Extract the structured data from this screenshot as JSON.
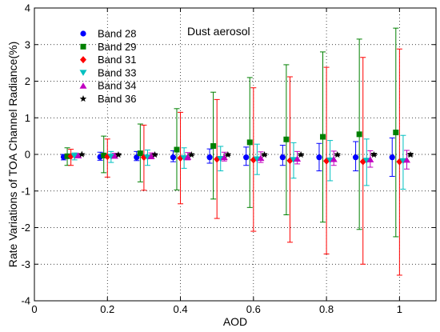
{
  "chart_data": {
    "type": "scatter",
    "xlabel": "AOD",
    "ylabel": "Rate Variations of TOA Channel Radiance(%)",
    "annotation": "Dust aerosol",
    "xlim": [
      0,
      1.1
    ],
    "ylim": [
      -4,
      4
    ],
    "xticks": [
      0,
      0.2,
      0.4,
      0.6,
      0.8,
      1
    ],
    "xtick_labels": [
      "0",
      "0.2",
      "0.4",
      "0.6",
      "0.8",
      "1"
    ],
    "yticks": [
      -4,
      -3,
      -2,
      -1,
      0,
      1,
      2,
      3,
      4
    ],
    "ytick_labels": [
      "-4",
      "-3",
      "-2",
      "-1",
      "0",
      "1",
      "2",
      "3",
      "4"
    ],
    "grid": "dotted",
    "legend_position": "top-left",
    "aod": [
      0.1,
      0.2,
      0.3,
      0.4,
      0.5,
      0.6,
      0.7,
      0.8,
      0.9,
      1.0
    ],
    "series": [
      {
        "name": "Band 28",
        "color": "#0000ff",
        "marker": "circle",
        "x_offset": -0.02,
        "values": [
          -0.07,
          -0.07,
          -0.08,
          -0.08,
          -0.08,
          -0.08,
          -0.08,
          -0.08,
          -0.08,
          -0.08
        ],
        "err_low": [
          -0.15,
          -0.16,
          -0.17,
          -0.2,
          -0.24,
          -0.3,
          -0.3,
          -0.45,
          -0.45,
          -0.6
        ],
        "err_high": [
          0.0,
          0.06,
          0.08,
          0.1,
          0.15,
          0.2,
          0.25,
          0.3,
          0.35,
          0.45
        ]
      },
      {
        "name": "Band 29",
        "color": "#008000",
        "marker": "square",
        "x_offset": -0.01,
        "values": [
          -0.05,
          -0.03,
          0.03,
          0.13,
          0.23,
          0.33,
          0.41,
          0.48,
          0.55,
          0.6
        ],
        "err_low": [
          -0.3,
          -0.5,
          -0.75,
          -0.97,
          -1.22,
          -1.45,
          -1.65,
          -1.85,
          -2.05,
          -2.25
        ],
        "err_high": [
          0.18,
          0.5,
          0.83,
          1.25,
          1.7,
          2.1,
          2.45,
          2.8,
          3.15,
          3.45
        ]
      },
      {
        "name": "Band 31",
        "color": "#ff0000",
        "marker": "diamond",
        "x_offset": 0.0,
        "values": [
          -0.05,
          -0.06,
          -0.08,
          -0.1,
          -0.13,
          -0.15,
          -0.17,
          -0.18,
          -0.2,
          -0.2
        ],
        "err_low": [
          -0.3,
          -0.62,
          -0.98,
          -1.35,
          -1.75,
          -2.1,
          -2.4,
          -2.72,
          -3.0,
          -3.3
        ],
        "err_high": [
          0.14,
          0.42,
          0.8,
          1.15,
          1.5,
          1.82,
          2.12,
          2.38,
          2.65,
          2.88
        ]
      },
      {
        "name": "Band 33",
        "color": "#00c0c0",
        "marker": "triangle-down",
        "x_offset": 0.01,
        "values": [
          -0.05,
          -0.06,
          -0.08,
          -0.1,
          -0.12,
          -0.13,
          -0.15,
          -0.16,
          -0.17,
          -0.18
        ],
        "err_low": [
          -0.15,
          -0.22,
          -0.3,
          -0.38,
          -0.45,
          -0.55,
          -0.65,
          -0.72,
          -0.85,
          -0.95
        ],
        "err_high": [
          0.04,
          0.08,
          0.12,
          0.18,
          0.22,
          0.28,
          0.32,
          0.38,
          0.42,
          0.52
        ]
      },
      {
        "name": "Band 34",
        "color": "#c000c0",
        "marker": "triangle-up",
        "x_offset": 0.02,
        "values": [
          -0.03,
          -0.04,
          -0.05,
          -0.07,
          -0.08,
          -0.1,
          -0.12,
          -0.13,
          -0.14,
          -0.15
        ],
        "err_low": [
          -0.08,
          -0.1,
          -0.12,
          -0.15,
          -0.18,
          -0.22,
          -0.26,
          -0.3,
          -0.35,
          -0.4
        ],
        "err_high": [
          0.02,
          0.03,
          0.04,
          0.05,
          0.06,
          0.07,
          0.08,
          0.09,
          0.1,
          0.11
        ]
      },
      {
        "name": "Band 36",
        "color": "#000000",
        "marker": "star",
        "x_offset": 0.03,
        "values": [
          0.0,
          -0.01,
          -0.01,
          -0.01,
          -0.01,
          -0.01,
          -0.01,
          -0.01,
          -0.01,
          -0.01
        ],
        "err_low": [
          -0.02,
          -0.02,
          -0.02,
          -0.03,
          -0.03,
          -0.03,
          -0.03,
          -0.03,
          -0.03,
          -0.04
        ],
        "err_high": [
          0.02,
          0.02,
          0.02,
          0.02,
          0.02,
          0.02,
          0.02,
          0.02,
          0.03,
          0.03
        ]
      }
    ]
  }
}
